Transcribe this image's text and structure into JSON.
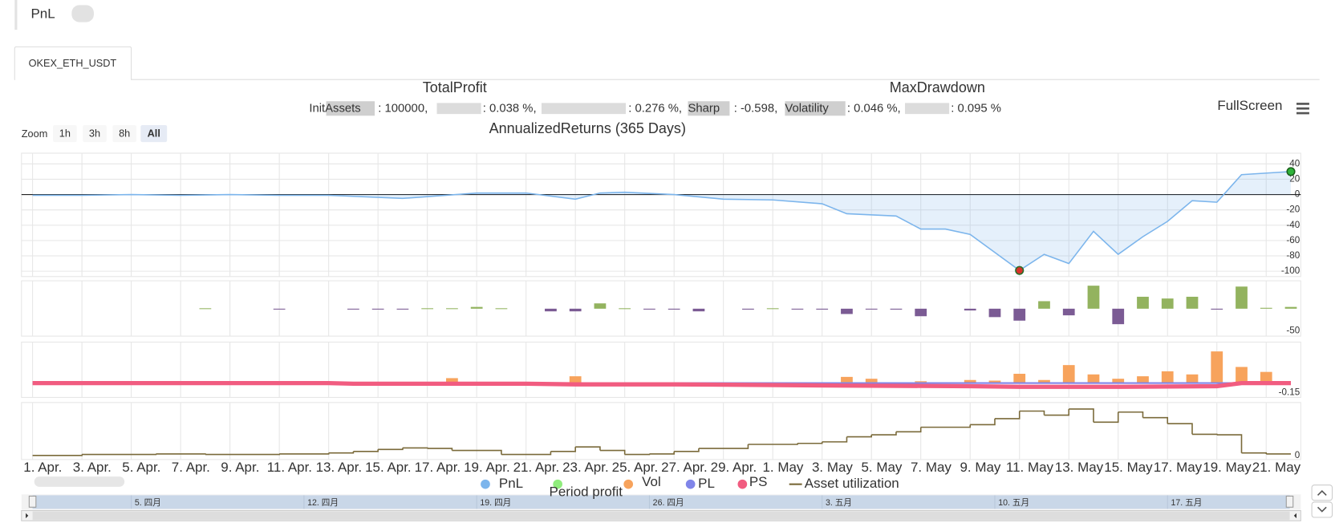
{
  "header": {
    "title": "PnL"
  },
  "tab": {
    "label": "OKEX_ETH_USDT"
  },
  "summary": {
    "total_profit": "TotalProfit",
    "max_drawdown": "MaxDrawdown",
    "stats": [
      "InitAssets",
      ": 100000,",
      ": 0.038 %,",
      ": 0.276 %,",
      "Sharp",
      ": -0.598,",
      "Volatility",
      ": 0.046 %,",
      ": 0.095 %"
    ],
    "annualized": "AnnualizedReturns (365 Days)"
  },
  "toolbar": {
    "zoom": "Zoom",
    "buttons": [
      "1h",
      "3h",
      "8h",
      "All"
    ],
    "selected": 3,
    "fullscreen": "FullScreen"
  },
  "chart_data": [
    {
      "type": "line",
      "area": true,
      "grid": true,
      "xlim": [
        -0.45,
        51.4
      ],
      "ylim": [
        -107,
        54
      ],
      "yticks": [
        40,
        20,
        0,
        -20,
        -40,
        -60,
        -80,
        -100
      ],
      "min_marker_color": "#d9322b",
      "last_marker_color": "#2fb33a",
      "series": [
        {
          "name": "PnL",
          "color": "#7cb5ec",
          "x": [
            0,
            2,
            4,
            6,
            8,
            10,
            12,
            15,
            18,
            20,
            22,
            23,
            24,
            26,
            28,
            30,
            32,
            33,
            35,
            36,
            37,
            38,
            40,
            41,
            42,
            43,
            44,
            45,
            46,
            47,
            48,
            49,
            51
          ],
          "values": [
            -1,
            -1,
            0,
            -1,
            0,
            -1,
            -1,
            -5,
            2,
            2,
            -6,
            2,
            3,
            0,
            -6,
            -7,
            -12,
            -25,
            -28,
            -45,
            -45,
            -52,
            -99,
            -78,
            -90,
            -48,
            -78,
            -55,
            -35,
            -8,
            -10,
            26,
            30
          ]
        }
      ]
    },
    {
      "type": "bar",
      "xlim": [
        -0.45,
        51.4
      ],
      "ylim": [
        -62,
        63
      ],
      "yticks": [
        -50
      ],
      "series": [
        {
          "name": "Period profit",
          "color": "#90ed7d",
          "positive_color": "#93b35f",
          "negative_color": "#7b5b94",
          "x": [
            7,
            10,
            13,
            14,
            15,
            16,
            17,
            18,
            19,
            21,
            22,
            23,
            24,
            25,
            26,
            27,
            29,
            30,
            31,
            32,
            33,
            34,
            35,
            36,
            38,
            39,
            40,
            41,
            42,
            43,
            44,
            45,
            46,
            47,
            48,
            49,
            50,
            51
          ],
          "values": [
            1,
            -1,
            -1,
            -1,
            -1,
            1,
            1,
            4,
            1,
            -6,
            -6,
            12,
            1,
            -1,
            -2,
            -6,
            -2,
            1,
            -1,
            -2,
            -12,
            -1,
            -2,
            -17,
            -4,
            -19,
            -27,
            17,
            -15,
            52,
            -35,
            27,
            23,
            27,
            -2,
            50,
            2,
            4
          ]
        }
      ]
    },
    {
      "type": "combo",
      "xlim": [
        -0.45,
        51.4
      ],
      "ylim": [
        -0.23,
        0.66
      ],
      "yticks": [
        -0.15
      ],
      "series": [
        {
          "name": "Vol",
          "type": "bar",
          "color": "#f7a35c",
          "x": [
            17,
            22,
            33,
            34,
            36,
            38,
            39,
            40,
            41,
            42,
            43,
            44,
            45,
            46,
            47,
            48,
            49,
            50
          ],
          "values": [
            0.08,
            0.11,
            0.1,
            0.07,
            0.03,
            0.05,
            0.04,
            0.15,
            0.05,
            0.29,
            0.14,
            0.07,
            0.11,
            0.19,
            0.14,
            0.51,
            0.26,
            0.18
          ]
        },
        {
          "name": "PL",
          "type": "line",
          "color": "#8085e9",
          "x": [
            0,
            51
          ],
          "values": [
            0,
            0
          ]
        },
        {
          "name": "PS",
          "type": "line",
          "color": "#f15c80",
          "x": [
            0,
            12,
            13,
            20,
            22,
            26,
            33,
            38,
            40,
            44,
            48,
            49,
            51
          ],
          "values": [
            0,
            0,
            -0.01,
            -0.01,
            -0.02,
            -0.02,
            -0.04,
            -0.05,
            -0.06,
            -0.06,
            -0.05,
            0,
            0
          ]
        }
      ]
    },
    {
      "type": "line",
      "step": true,
      "xlim": [
        -0.45,
        51.4
      ],
      "ylim": [
        -8,
        105
      ],
      "yticks": [
        0
      ],
      "xticks": [
        {
          "value": 0,
          "label": "1. Apr."
        },
        {
          "value": 2,
          "label": "3. Apr."
        },
        {
          "value": 4,
          "label": "5. Apr."
        },
        {
          "value": 6,
          "label": "7. Apr."
        },
        {
          "value": 8,
          "label": "9. Apr."
        },
        {
          "value": 10,
          "label": "11. Apr."
        },
        {
          "value": 12,
          "label": "13. Apr."
        },
        {
          "value": 14,
          "label": "15. Apr."
        },
        {
          "value": 16,
          "label": "17. Apr."
        },
        {
          "value": 18,
          "label": "19. Apr."
        },
        {
          "value": 20,
          "label": "21. Apr."
        },
        {
          "value": 22,
          "label": "23. Apr."
        },
        {
          "value": 24,
          "label": "25. Apr."
        },
        {
          "value": 26,
          "label": "27. Apr."
        },
        {
          "value": 28,
          "label": "29. Apr."
        },
        {
          "value": 30,
          "label": "1. May"
        },
        {
          "value": 32,
          "label": "3. May"
        },
        {
          "value": 34,
          "label": "5. May"
        },
        {
          "value": 36,
          "label": "7. May"
        },
        {
          "value": 38,
          "label": "9. May"
        },
        {
          "value": 40,
          "label": "11. May"
        },
        {
          "value": 42,
          "label": "13. May"
        },
        {
          "value": 44,
          "label": "15. May"
        },
        {
          "value": 46,
          "label": "17. May"
        },
        {
          "value": 48,
          "label": "19. May"
        },
        {
          "value": 50,
          "label": "21. May"
        }
      ],
      "series": [
        {
          "name": "Asset utilization",
          "color": "#7a6a3a",
          "legend_symbol": "line",
          "x": [
            0,
            2,
            5,
            7,
            10,
            12,
            13,
            14,
            15,
            16,
            17,
            19,
            21,
            22,
            23,
            24,
            25,
            26,
            27,
            29,
            31,
            32,
            33,
            34,
            35,
            36,
            38,
            39,
            40,
            41,
            42,
            43,
            44,
            45,
            46,
            47,
            48,
            49,
            50,
            51
          ],
          "values": [
            0,
            2,
            3,
            2,
            3,
            5,
            8,
            12,
            15,
            14,
            10,
            2,
            8,
            17,
            10,
            2,
            3,
            8,
            14,
            22,
            24,
            27,
            37,
            41,
            47,
            56,
            61,
            73,
            88,
            80,
            92,
            66,
            86,
            75,
            63,
            42,
            41,
            5,
            3,
            3
          ]
        }
      ]
    }
  ],
  "navigator": {
    "ticks": [
      {
        "value": 4,
        "label": "5. 四月"
      },
      {
        "value": 11,
        "label": "12. 四月"
      },
      {
        "value": 18,
        "label": "19. 四月"
      },
      {
        "value": 25,
        "label": "26. 四月"
      },
      {
        "value": 32,
        "label": "3. 五月"
      },
      {
        "value": 39,
        "label": "10. 五月"
      },
      {
        "value": 46,
        "label": "17. 五月"
      }
    ]
  }
}
